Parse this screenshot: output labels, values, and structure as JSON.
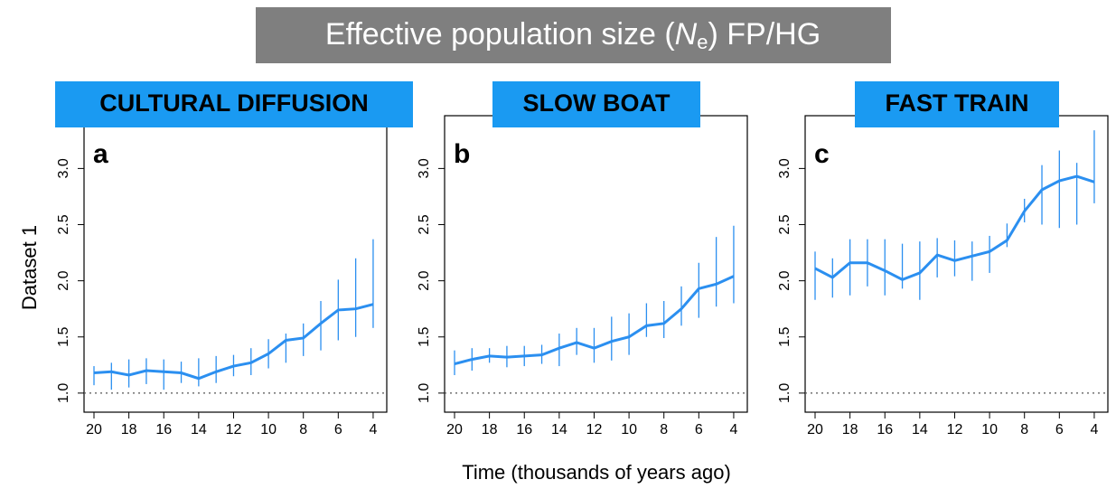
{
  "title": [
    "Effective population size (",
    "N",
    "e",
    ") FP/HG"
  ],
  "xlabel": "Time (thousands of years ago)",
  "chart_data": [
    {
      "type": "line",
      "banner": "CULTURAL DIFFUSION",
      "label": "a",
      "ylabel": "Dataset 1",
      "x": [
        20,
        19,
        18,
        17,
        16,
        15,
        14,
        13,
        12,
        11,
        10,
        9,
        8,
        7,
        6,
        5,
        4
      ],
      "series": [
        {
          "color": "#2b8ff0",
          "values": [
            1.18,
            1.19,
            1.16,
            1.2,
            1.19,
            1.18,
            1.13,
            1.19,
            1.24,
            1.27,
            1.35,
            1.47,
            1.49,
            1.62,
            1.74,
            1.75,
            1.79
          ],
          "lower": [
            1.07,
            1.03,
            1.05,
            1.08,
            1.03,
            1.09,
            1.06,
            1.09,
            1.15,
            1.16,
            1.22,
            1.27,
            1.33,
            1.38,
            1.47,
            1.5,
            1.58
          ],
          "upper": [
            1.24,
            1.27,
            1.3,
            1.31,
            1.3,
            1.28,
            1.31,
            1.33,
            1.34,
            1.4,
            1.48,
            1.53,
            1.62,
            1.82,
            2.01,
            2.2,
            2.37
          ]
        }
      ],
      "hline": 1,
      "xlim": [
        20.57,
        3.22
      ],
      "xticks": [
        20,
        18,
        16,
        14,
        12,
        10,
        8,
        6,
        4
      ],
      "ylim": [
        0.83,
        3.47
      ],
      "yticks": [
        {
          "value": 1,
          "label": "1.0"
        },
        1.5,
        {
          "value": 2,
          "label": "2.0"
        },
        2.5,
        {
          "value": 3,
          "label": "3.0"
        }
      ]
    },
    {
      "type": "line",
      "banner": "SLOW BOAT",
      "label": "b",
      "x": [
        20,
        19,
        18,
        17,
        16,
        15,
        14,
        13,
        12,
        11,
        10,
        9,
        8,
        7,
        6,
        5,
        4
      ],
      "series": [
        {
          "color": "#2b8ff0",
          "values": [
            1.26,
            1.3,
            1.33,
            1.32,
            1.33,
            1.34,
            1.4,
            1.45,
            1.4,
            1.46,
            1.5,
            1.6,
            1.62,
            1.75,
            1.93,
            1.97,
            2.04
          ],
          "lower": [
            1.16,
            1.2,
            1.27,
            1.23,
            1.24,
            1.26,
            1.24,
            1.34,
            1.27,
            1.29,
            1.34,
            1.5,
            1.49,
            1.6,
            1.67,
            1.77,
            1.8
          ],
          "upper": [
            1.38,
            1.4,
            1.4,
            1.42,
            1.42,
            1.43,
            1.53,
            1.58,
            1.58,
            1.68,
            1.71,
            1.8,
            1.82,
            1.95,
            2.16,
            2.39,
            2.49
          ]
        }
      ],
      "hline": 1,
      "xlim": [
        20.57,
        3.22
      ],
      "xticks": [
        20,
        18,
        16,
        14,
        12,
        10,
        8,
        6,
        4
      ],
      "ylim": [
        0.83,
        3.47
      ],
      "yticks": [
        {
          "value": 1,
          "label": "1.0"
        },
        1.5,
        {
          "value": 2,
          "label": "2.0"
        },
        2.5,
        {
          "value": 3,
          "label": "3.0"
        }
      ]
    },
    {
      "type": "line",
      "banner": "FAST TRAIN",
      "label": "c",
      "x": [
        20,
        19,
        18,
        17,
        16,
        15,
        14,
        13,
        12,
        11,
        10,
        9,
        8,
        7,
        6,
        5,
        4
      ],
      "series": [
        {
          "color": "#2b8ff0",
          "values": [
            2.11,
            2.03,
            2.16,
            2.16,
            2.09,
            2.01,
            2.07,
            2.23,
            2.18,
            2.22,
            2.26,
            2.36,
            2.62,
            2.81,
            2.89,
            2.93,
            2.88
          ],
          "lower": [
            1.83,
            1.85,
            1.87,
            1.95,
            1.87,
            1.93,
            1.83,
            2.03,
            2.04,
            2.0,
            2.07,
            2.3,
            2.52,
            2.5,
            2.47,
            2.5,
            2.69
          ],
          "upper": [
            2.26,
            2.2,
            2.37,
            2.37,
            2.37,
            2.33,
            2.35,
            2.38,
            2.36,
            2.35,
            2.4,
            2.51,
            2.73,
            3.03,
            3.16,
            3.05,
            3.34
          ]
        }
      ],
      "hline": 1,
      "xlim": [
        20.57,
        3.22
      ],
      "xticks": [
        20,
        18,
        16,
        14,
        12,
        10,
        8,
        6,
        4
      ],
      "ylim": [
        0.83,
        3.47
      ],
      "yticks": [
        {
          "value": 1,
          "label": "1.0"
        },
        1.5,
        {
          "value": 2,
          "label": "2.0"
        },
        2.5,
        {
          "value": 3,
          "label": "3.0"
        }
      ]
    }
  ]
}
